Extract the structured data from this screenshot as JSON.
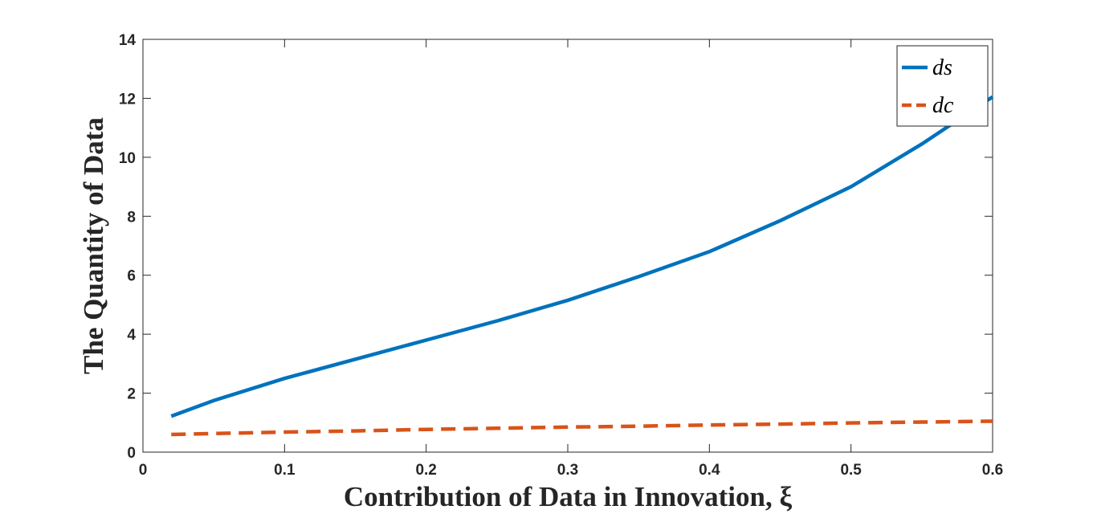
{
  "chart_data": {
    "type": "line",
    "xlabel": "Contribution of Data in Innovation, ξ",
    "ylabel": "The Quantity of Data",
    "x": [
      0.02,
      0.05,
      0.1,
      0.15,
      0.2,
      0.25,
      0.3,
      0.35,
      0.4,
      0.45,
      0.5,
      0.55,
      0.6
    ],
    "series": [
      {
        "name": "ds",
        "color": "#0072bd",
        "dash": "solid",
        "values": [
          1.22,
          1.75,
          2.5,
          3.15,
          3.8,
          4.45,
          5.15,
          5.95,
          6.8,
          7.85,
          9.0,
          10.45,
          12.05
        ]
      },
      {
        "name": "dc",
        "color": "#d95319",
        "dash": "dashed",
        "values": [
          0.6,
          0.63,
          0.68,
          0.72,
          0.77,
          0.81,
          0.85,
          0.88,
          0.92,
          0.95,
          0.99,
          1.02,
          1.05
        ]
      }
    ],
    "xlim": [
      0,
      0.6
    ],
    "xticks": [
      0,
      0.1,
      0.2,
      0.3,
      0.4,
      0.5,
      0.6
    ],
    "ylim": [
      0,
      14
    ],
    "yticks": [
      0,
      2,
      4,
      6,
      8,
      10,
      12,
      14
    ],
    "legend": "top-right"
  }
}
